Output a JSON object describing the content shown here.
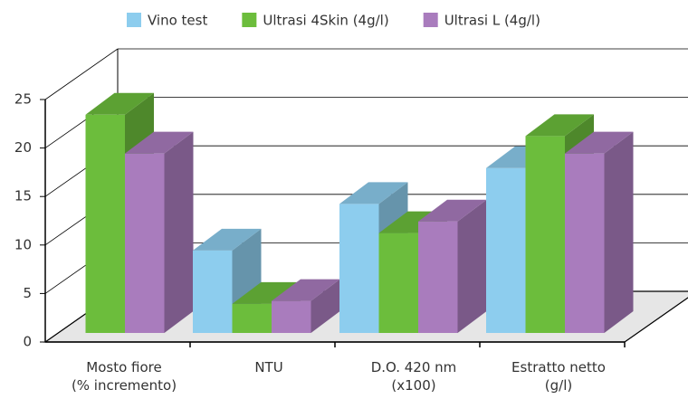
{
  "chart_data": {
    "type": "bar3d",
    "categories": [
      "Mosto fiore\n(% incremento)",
      "NTU",
      "D.O. 420 nm\n(x100)",
      "Estratto netto\n(g/l)"
    ],
    "series": [
      {
        "name": "Vino test",
        "color": "#8dcdee",
        "values": [
          null,
          8.5,
          13.3,
          17
        ]
      },
      {
        "name": "Ultrasi 4Skin (4g/l)",
        "color": "#6cbd3c",
        "values": [
          22.5,
          3,
          10.3,
          20.3
        ]
      },
      {
        "name": "Ultrasi L (4g/l)",
        "color": "#a97cbd",
        "values": [
          18.5,
          3.3,
          11.5,
          18.5
        ]
      }
    ],
    "ylim": [
      0,
      25
    ],
    "yticks": [
      0,
      5,
      10,
      15,
      20,
      25
    ],
    "grid": true,
    "legend": "top"
  }
}
